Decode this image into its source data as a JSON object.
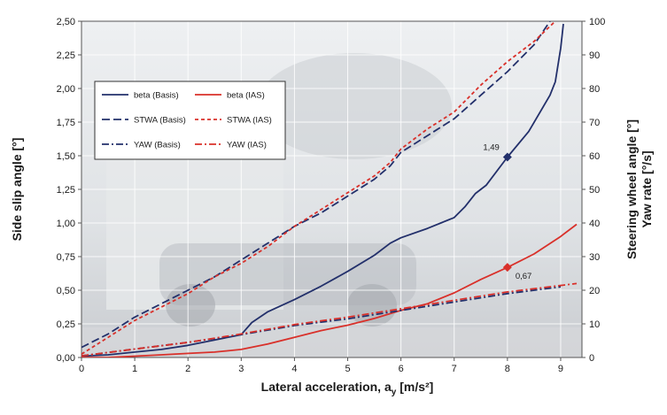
{
  "chart_data": {
    "type": "line",
    "title": "",
    "xlabel": "Lateral acceleration, a",
    "xlabel_sub": "y",
    "xlabel_unit": " [m/s²]",
    "ylabel": "Side slip angle  [°]",
    "y2label_line1": "Steering  wheel angle  [°]",
    "y2label_line2": "Yaw  rate  [°/s]",
    "xlim": [
      0,
      9.4
    ],
    "ylim": [
      0,
      2.5
    ],
    "y2lim": [
      0,
      100
    ],
    "x_ticks": [
      "0",
      "1",
      "2",
      "3",
      "4",
      "5",
      "6",
      "7",
      "8",
      "9"
    ],
    "y_ticks": [
      "0,00",
      "0,25",
      "0,50",
      "0,75",
      "1,00",
      "1,25",
      "1,50",
      "1,75",
      "2,00",
      "2,25",
      "2,50"
    ],
    "y2_ticks": [
      "0",
      "10",
      "20",
      "30",
      "40",
      "50",
      "60",
      "70",
      "80",
      "90",
      "100"
    ],
    "grid": true,
    "legend_position": "upper-left",
    "colors": {
      "basis": "#23306b",
      "ias": "#d9302a"
    },
    "series": [
      {
        "name": "beta (Basis)",
        "axis": "left",
        "color": "#23306b",
        "dash": "solid",
        "x": [
          0,
          0.5,
          1.0,
          1.5,
          2.0,
          2.5,
          3.0,
          3.2,
          3.5,
          4.0,
          4.5,
          5.0,
          5.5,
          5.8,
          6.0,
          6.5,
          7.0,
          7.2,
          7.4,
          7.6,
          8.0,
          8.4,
          8.8,
          8.9,
          9.0,
          9.05
        ],
        "y": [
          0.01,
          0.02,
          0.04,
          0.06,
          0.09,
          0.13,
          0.17,
          0.26,
          0.34,
          0.43,
          0.53,
          0.64,
          0.76,
          0.85,
          0.89,
          0.96,
          1.04,
          1.12,
          1.22,
          1.28,
          1.49,
          1.68,
          1.95,
          2.05,
          2.3,
          2.48
        ]
      },
      {
        "name": "beta (IAS)",
        "axis": "left",
        "color": "#d9302a",
        "dash": "solid",
        "x": [
          0,
          0.5,
          1.0,
          1.5,
          2.0,
          2.5,
          3.0,
          3.5,
          4.0,
          4.5,
          5.0,
          5.5,
          6.0,
          6.5,
          7.0,
          7.5,
          8.0,
          8.5,
          9.0,
          9.3
        ],
        "y": [
          0.0,
          0.0,
          0.01,
          0.02,
          0.03,
          0.04,
          0.06,
          0.1,
          0.15,
          0.2,
          0.24,
          0.29,
          0.35,
          0.4,
          0.48,
          0.58,
          0.67,
          0.77,
          0.9,
          0.99
        ]
      },
      {
        "name": "STWA (Basis)",
        "axis": "right",
        "color": "#23306b",
        "dash": "long",
        "x": [
          0,
          0.5,
          1.0,
          1.5,
          2.0,
          2.5,
          3.0,
          3.5,
          4.0,
          4.5,
          5.0,
          5.5,
          5.8,
          6.0,
          6.5,
          7.0,
          7.5,
          8.0,
          8.5,
          8.8
        ],
        "y": [
          3,
          7,
          12,
          16,
          20,
          24,
          29,
          34,
          39,
          43,
          48,
          53,
          57,
          61,
          66,
          71,
          78,
          85,
          93,
          100
        ]
      },
      {
        "name": "STWA (IAS)",
        "axis": "right",
        "color": "#d9302a",
        "dash": "short",
        "x": [
          0,
          0.5,
          1.0,
          1.5,
          2.0,
          2.5,
          3.0,
          3.5,
          4.0,
          4.5,
          5.0,
          5.5,
          5.8,
          6.0,
          6.5,
          7.0,
          7.5,
          8.0,
          8.5,
          8.9
        ],
        "y": [
          1,
          6,
          11,
          15,
          19,
          24,
          28,
          33,
          39,
          44,
          49,
          54,
          58,
          62,
          68,
          73,
          81,
          88,
          94,
          100
        ]
      },
      {
        "name": "YAW (Basis)",
        "axis": "right",
        "color": "#23306b",
        "dash": "dashdot",
        "x": [
          0,
          1,
          2,
          3,
          4,
          5,
          6,
          7,
          8,
          9
        ],
        "y": [
          0.5,
          2.5,
          4.5,
          6.8,
          9.5,
          11.5,
          14,
          16.5,
          19,
          21
        ]
      },
      {
        "name": "YAW (IAS)",
        "axis": "right",
        "color": "#d9302a",
        "dash": "dashdot",
        "x": [
          0,
          1,
          2,
          3,
          4,
          5,
          6,
          7,
          8,
          9.3
        ],
        "y": [
          0.5,
          2.5,
          4.5,
          7,
          9.8,
          12,
          14.5,
          17,
          19.5,
          22
        ]
      }
    ],
    "markers": [
      {
        "x": 8.0,
        "y": 1.49,
        "label": "1,49",
        "color": "#23306b"
      },
      {
        "x": 8.0,
        "y": 0.67,
        "label": "0,67",
        "color": "#d9302a"
      }
    ]
  }
}
